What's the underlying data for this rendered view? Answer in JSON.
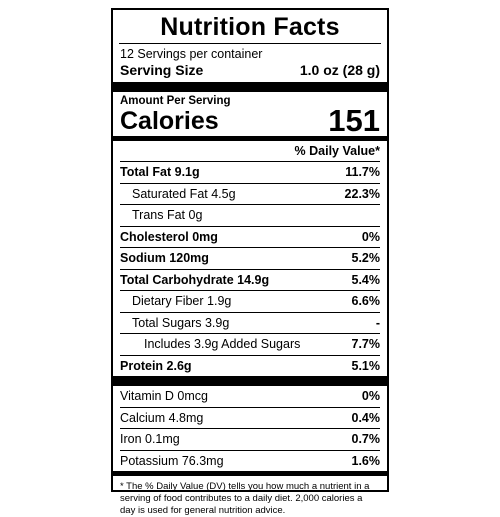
{
  "title": "Nutrition Facts",
  "servings": "12 Servings per container",
  "serving_size": {
    "label": "Serving Size",
    "value": "1.0 oz (28 g)"
  },
  "amount_per_serving": "Amount Per Serving",
  "calories": {
    "label": "Calories",
    "value": "151"
  },
  "daily_value_header": "% Daily Value*",
  "nutrients": [
    {
      "name": "Total Fat 9.1g",
      "dv": "11.7%"
    },
    {
      "name": "Saturated Fat 4.5g",
      "dv": "22.3%"
    },
    {
      "name": "Trans Fat 0g",
      "dv": ""
    },
    {
      "name": "Cholesterol 0mg",
      "dv": "0%"
    },
    {
      "name": "Sodium 120mg",
      "dv": "5.2%"
    },
    {
      "name": "Total Carbohydrate 14.9g",
      "dv": "5.4%"
    },
    {
      "name": "Dietary Fiber 1.9g",
      "dv": "6.6%"
    },
    {
      "name": "Total Sugars 3.9g",
      "dv": "-"
    },
    {
      "name": "Includes 3.9g Added Sugars",
      "dv": "7.7%"
    },
    {
      "name": "Protein 2.6g",
      "dv": "5.1%"
    }
  ],
  "vitamins": [
    {
      "name": "Vitamin D 0mcg",
      "dv": "0%"
    },
    {
      "name": "Calcium 4.8mg",
      "dv": "0.4%"
    },
    {
      "name": "Iron 0.1mg",
      "dv": "0.7%"
    },
    {
      "name": "Potassium 76.3mg",
      "dv": "1.6%"
    }
  ],
  "footnote": "* The % Daily Value (DV) tells you how much a nutrient in a serving of food contributes to a daily diet. 2,000 calories a day is used for general nutrition advice."
}
